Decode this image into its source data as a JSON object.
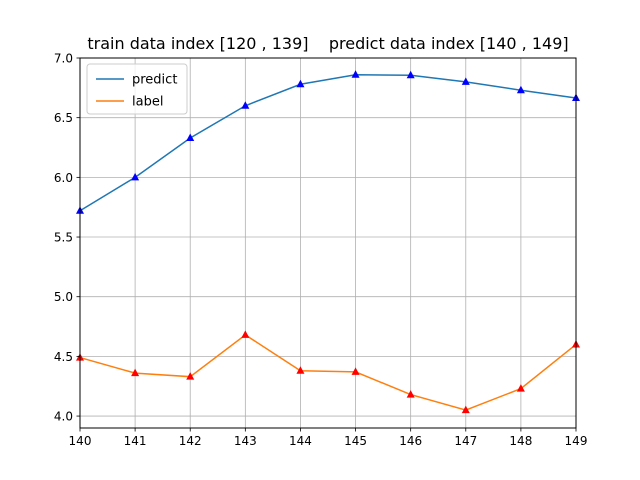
{
  "chart_data": {
    "type": "line",
    "title": "train data index [120 , 139]    predict data index [140 , 149]",
    "xlabel": "",
    "ylabel": "",
    "x": [
      140,
      141,
      142,
      143,
      144,
      145,
      146,
      147,
      148,
      149
    ],
    "xlim": [
      140,
      149
    ],
    "ylim": [
      3.9,
      7.0
    ],
    "xticks": [
      140,
      141,
      142,
      143,
      144,
      145,
      146,
      147,
      148,
      149
    ],
    "yticks": [
      4.0,
      4.5,
      5.0,
      5.5,
      6.0,
      6.5,
      7.0
    ],
    "ytick_labels": [
      "4.0",
      "4.5",
      "5.0",
      "5.5",
      "6.0",
      "6.5",
      "7.0"
    ],
    "grid": true,
    "legend_position": "top-left",
    "series": [
      {
        "name": "predict",
        "color": "#1f77b4",
        "marker": "triangle",
        "marker_color": "#0000ff",
        "values": [
          5.72,
          6.0,
          6.33,
          6.6,
          6.78,
          6.86,
          6.855,
          6.8,
          6.73,
          6.665
        ]
      },
      {
        "name": "label",
        "color": "#ff7f0e",
        "marker": "triangle",
        "marker_color": "#ff0000",
        "values": [
          4.49,
          4.36,
          4.33,
          4.68,
          4.38,
          4.37,
          4.18,
          4.05,
          4.23,
          4.6
        ]
      }
    ]
  }
}
